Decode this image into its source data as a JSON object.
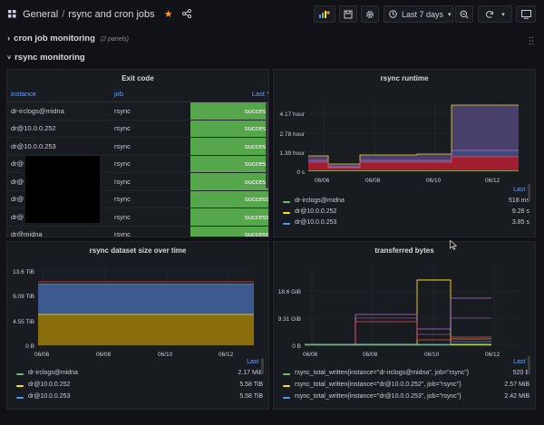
{
  "breadcrumb": {
    "folder": "General",
    "separator": "/",
    "dashboard": "rsync and cron jobs"
  },
  "toolbar": {
    "time_range": "Last 7 days"
  },
  "rows": [
    {
      "title": "cron job monitoring",
      "count": "(2 panels)",
      "collapsed": true
    },
    {
      "title": "rsync monitoring",
      "collapsed": false
    }
  ],
  "exit_code_panel": {
    "title": "Exit code",
    "columns": {
      "instance": "instance",
      "job": "job",
      "last": "Last *"
    },
    "rows": [
      {
        "instance": "dr-irclogs@midna",
        "job": "rsync",
        "status": "success"
      },
      {
        "instance": "dr@10.0.0.252",
        "job": "rsync",
        "status": "success"
      },
      {
        "instance": "dr@10.0.0.253",
        "job": "rsync",
        "status": "success"
      },
      {
        "instance": "dr@",
        "job": "rsync",
        "status": "success"
      },
      {
        "instance": "dr@",
        "job": "rsync",
        "status": "success"
      },
      {
        "instance": "dr@",
        "job": "rsync",
        "status": "success"
      },
      {
        "instance": "dr@",
        "job": "rsync",
        "status": "success"
      },
      {
        "instance": "dr@midna",
        "job": "rsync",
        "status": "success"
      }
    ]
  },
  "runtime_panel": {
    "title": "rsync runtime",
    "legend_header": "Last *",
    "legend": [
      {
        "name": "dr-irclogs@midna",
        "value": "518 ms",
        "color": "#73bf69"
      },
      {
        "name": "dr@10.0.0.252",
        "value": "9.26 s",
        "color": "#fade2a"
      },
      {
        "name": "dr@10.0.0.253",
        "value": "3.85 s",
        "color": "#5794f2"
      }
    ]
  },
  "dataset_panel": {
    "title": "rsync dataset size over time",
    "legend_header": "Last *",
    "legend": [
      {
        "name": "dr-irclogs@midna",
        "value": "2.17 MiB",
        "color": "#73bf69"
      },
      {
        "name": "dr@10.0.0.252",
        "value": "5.58 TiB",
        "color": "#fade2a"
      },
      {
        "name": "dr@10.0.0.253",
        "value": "5.58 TiB",
        "color": "#5794f2"
      }
    ]
  },
  "transferred_panel": {
    "title": "transferred bytes",
    "legend_header": "Last *",
    "legend": [
      {
        "name": "rsync_total_written{instance=\"dr-irclogs@midna\", job=\"rsync\"}",
        "value": "520 B",
        "color": "#73bf69"
      },
      {
        "name": "rsync_total_written{instance=\"dr@10.0.0.252\", job=\"rsync\"}",
        "value": "2.57 MiB",
        "color": "#fade2a"
      },
      {
        "name": "rsync_total_written{instance=\"dr@10.0.0.253\", job=\"rsync\"}",
        "value": "2.42 MiB",
        "color": "#5794f2"
      }
    ]
  },
  "chart_data": [
    {
      "type": "area",
      "title": "rsync runtime",
      "x_ticks": [
        "06/06",
        "06/08",
        "06/10",
        "06/12"
      ],
      "y_ticks": [
        "0 s",
        "1.39 hour",
        "2.78 hour",
        "4.17 hour"
      ],
      "series": [
        {
          "name": "dr-irclogs@midna",
          "x": [
            0,
            0.13,
            0.3,
            0.6,
            0.8,
            1
          ],
          "values": [
            0,
            0,
            0,
            0,
            0,
            0
          ]
        },
        {
          "name": "dr@10.0.0.252",
          "x": [
            0,
            0.13,
            0.3,
            0.6,
            0.8,
            1
          ],
          "values": [
            0.35,
            0.2,
            0.35,
            0.35,
            0.7,
            0.7
          ]
        },
        {
          "name": "dr@10.0.0.253",
          "x": [
            0,
            0.13,
            0.3,
            0.6,
            0.8,
            1
          ],
          "values": [
            0.45,
            0.25,
            0.5,
            0.5,
            1.5,
            1.5
          ]
        },
        {
          "name": "stacked top",
          "x": [
            0,
            0.13,
            0.3,
            0.6,
            0.8,
            1
          ],
          "values": [
            0.55,
            0.35,
            0.75,
            0.75,
            4.6,
            4.6
          ]
        }
      ]
    },
    {
      "type": "area",
      "title": "rsync dataset size over time",
      "x_ticks": [
        "06/06",
        "06/08",
        "06/10",
        "06/12"
      ],
      "y_ticks": [
        "0 B",
        "4.55 TiB",
        "9.09 TiB",
        "13.6 TiB"
      ],
      "series": [
        {
          "name": "dr@10.0.0.252",
          "values": [
            5.58,
            5.58
          ]
        },
        {
          "name": "dr@10.0.0.253",
          "values": [
            11.16,
            11.16
          ]
        }
      ]
    },
    {
      "type": "line",
      "title": "transferred bytes",
      "x_ticks": [
        "06/06",
        "06/08",
        "06/10",
        "06/12"
      ],
      "y_ticks": [
        "0 B",
        "9.31 GiB",
        "18.6 GiB"
      ]
    }
  ]
}
